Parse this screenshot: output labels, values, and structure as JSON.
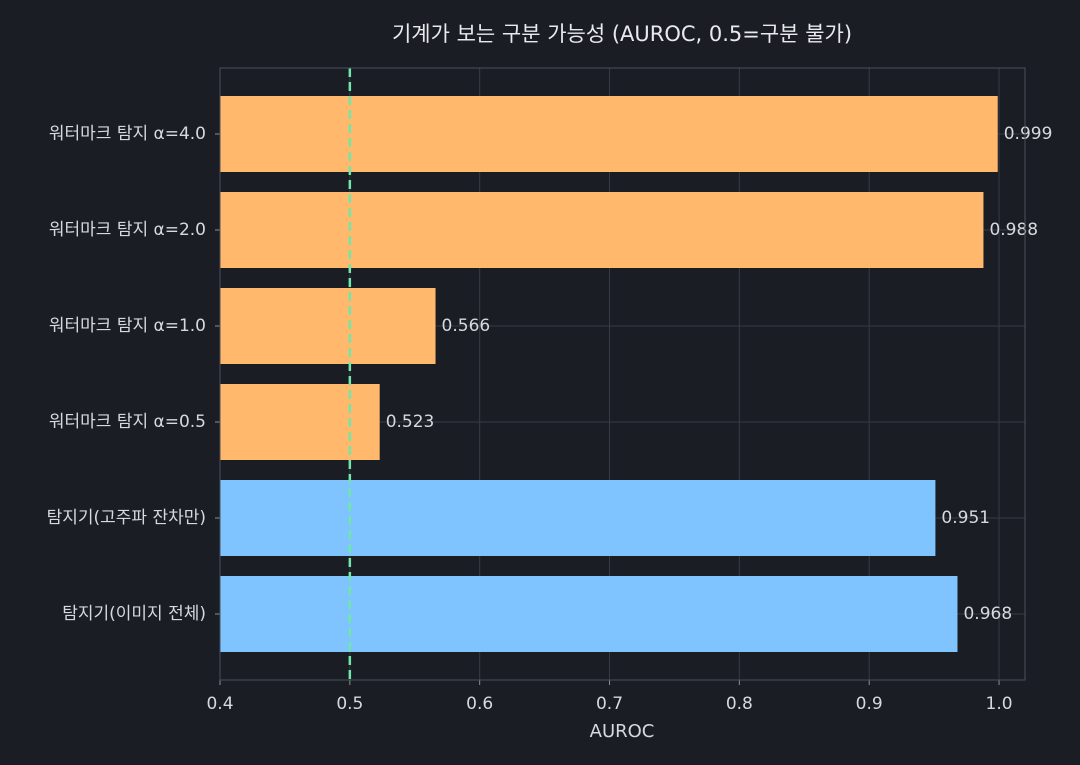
{
  "chart_data": {
    "type": "barh",
    "title": "기계가 보는 구분 가능성 (AUROC, 0.5=구분 불가)",
    "x_label": "AUROC",
    "categories": [
      "워터마크 탐지 α=4.0",
      "워터마크 탐지 α=2.0",
      "워터마크 탐지 α=1.0",
      "워터마크 탐지 α=0.5",
      "탐지기(고주파 잔차만)",
      "탐지기(이미지 전체)"
    ],
    "values": [
      0.999,
      0.988,
      0.566,
      0.523,
      0.951,
      0.968
    ],
    "colors": [
      "#ffb86c",
      "#ffb86c",
      "#ffb86c",
      "#ffb86c",
      "#7fc4ff",
      "#7fc4ff"
    ],
    "xlim": [
      0.4,
      1.02
    ],
    "xticks": [
      {
        "value": 0.4,
        "label": "0.4"
      },
      {
        "value": 0.5,
        "label": "0.5"
      },
      {
        "value": 0.6,
        "label": "0.6"
      },
      {
        "value": 0.7,
        "label": "0.7"
      },
      {
        "value": 0.8,
        "label": "0.8"
      },
      {
        "value": 0.9,
        "label": "0.9"
      },
      {
        "value": 1.0,
        "label": "1.0"
      }
    ],
    "reference_line": 0.5,
    "reference_color": "#6ee7a8",
    "grid": true
  }
}
